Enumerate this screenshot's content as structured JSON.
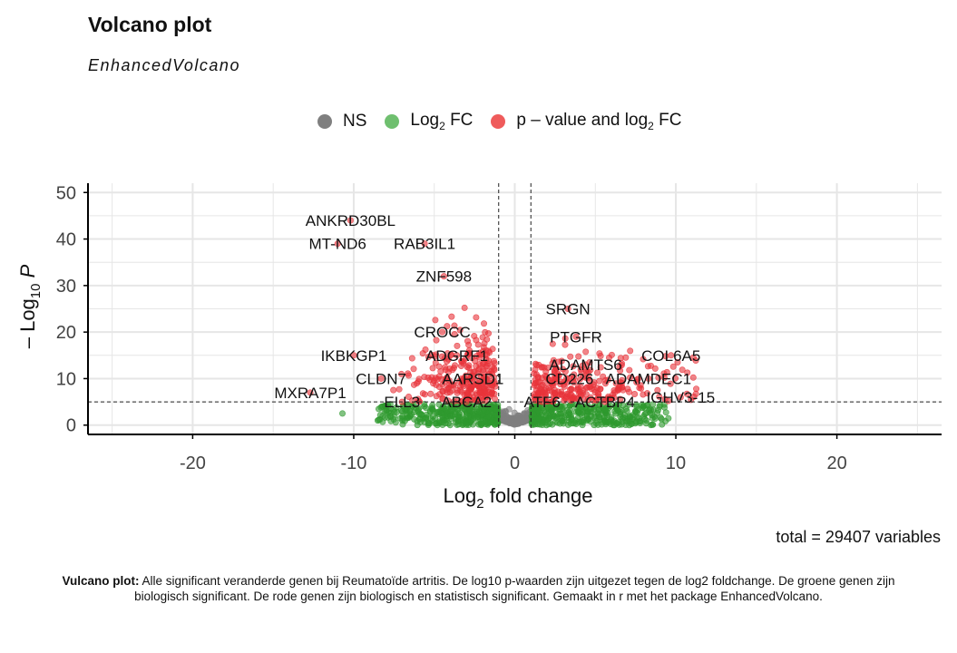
{
  "title": "Volcano plot",
  "subtitle": "EnhancedVolcano",
  "legend": {
    "ns": "NS",
    "log2fc_pre": "Log",
    "log2fc_sub": "2",
    "log2fc_post": " FC",
    "pval_pre": "p – value and log",
    "pval_sub": "2",
    "pval_post": " FC"
  },
  "colors": {
    "ns": "#7f7f7f",
    "log2fc": "#4caf50",
    "pval": "#e8333a",
    "threshold": "#222222",
    "grid": "#e6e6e6"
  },
  "footer": "total = 29407 variables",
  "caption": {
    "bold": "Vulcano plot:",
    "text": " Alle significant veranderde genen bij Reumatoïde artritis. De log10 p-waarden zijn uitgezet tegen de log2 foldchange. De groene genen zijn biologisch significant. De rode genen zijn biologisch en statistisch significant. Gemaakt in r met het package EnhancedVolcano."
  },
  "chart_data": {
    "type": "scatter",
    "xlabel_pre": "Log",
    "xlabel_sub": "2",
    "xlabel_post": " fold change",
    "ylabel_pre": "– Log",
    "ylabel_sub": "10",
    "ylabel_post": " P",
    "xlim": [
      -26.5,
      26.5
    ],
    "ylim": [
      -2,
      52
    ],
    "xticks": [
      -20,
      -10,
      0,
      10,
      20
    ],
    "yticks": [
      0,
      10,
      20,
      30,
      40,
      50
    ],
    "fc_cutoff": 1,
    "p_cutoff_log10": 5,
    "grid": true,
    "legend_position": "top",
    "labeled_genes": [
      {
        "name": "ANKRD30BL",
        "x": -10.2,
        "y": 44
      },
      {
        "name": "MT-ND6",
        "x": -11.0,
        "y": 39
      },
      {
        "name": "RAB3IL1",
        "x": -5.6,
        "y": 39
      },
      {
        "name": "ZNF598",
        "x": -4.4,
        "y": 32
      },
      {
        "name": "CROCC",
        "x": -4.5,
        "y": 20
      },
      {
        "name": "IKBKGP1",
        "x": -10.0,
        "y": 15
      },
      {
        "name": "ADGRF1",
        "x": -3.6,
        "y": 15
      },
      {
        "name": "CLDN7",
        "x": -8.3,
        "y": 10
      },
      {
        "name": "AARSD1",
        "x": -2.6,
        "y": 10
      },
      {
        "name": "MXRA7P1",
        "x": -12.7,
        "y": 7
      },
      {
        "name": "ELL3",
        "x": -7.0,
        "y": 5
      },
      {
        "name": "ABCA2",
        "x": -3.0,
        "y": 5
      },
      {
        "name": "SRGN",
        "x": 3.3,
        "y": 25
      },
      {
        "name": "PTGFR",
        "x": 3.8,
        "y": 19
      },
      {
        "name": "ADAMTS6",
        "x": 4.4,
        "y": 13
      },
      {
        "name": "COL6A5",
        "x": 9.7,
        "y": 15
      },
      {
        "name": "CD226",
        "x": 3.4,
        "y": 10
      },
      {
        "name": "ADAMDEC1",
        "x": 8.3,
        "y": 10
      },
      {
        "name": "ATF6",
        "x": 1.7,
        "y": 5
      },
      {
        "name": "ACTBP4",
        "x": 5.6,
        "y": 5
      },
      {
        "name": "IGHV3-15",
        "x": 10.3,
        "y": 6
      }
    ]
  }
}
